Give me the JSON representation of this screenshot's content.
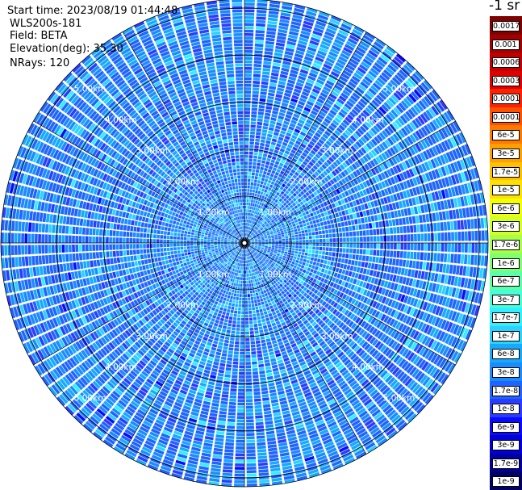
{
  "header": {
    "start_time": "Start time: 2023/08/19 01:44:48",
    "device": "WLS200s-181",
    "field": "Field: BETA",
    "elevation": "Elevation(deg): 35.30",
    "nrays": "NRays: 120"
  },
  "chart_data": {
    "type": "heatmap",
    "projection": "polar-ppi",
    "unit": "-1 sr",
    "ring_labels": [
      "1.00km",
      "2.00km",
      "3.00km",
      "4.00km",
      "5.00km"
    ],
    "max_range_km": 5.2,
    "n_rays": 120,
    "colorbar_ticks": [
      "0.0017",
      "0.001",
      "0.0006",
      "0.0003",
      "0.00017",
      "0.0001",
      "6e-5",
      "3e-5",
      "1.7e-5",
      "1e-5",
      "6e-6",
      "3e-6",
      "1.7e-6",
      "1e-6",
      "6e-7",
      "3e-7",
      "1.7e-7",
      "1e-7",
      "6e-8",
      "3e-8",
      "1.7e-8",
      "1e-8",
      "6e-9",
      "3e-9",
      "1.7e-9",
      "1e-9"
    ],
    "colorbar_colors": [
      "#000066",
      "#0000a0",
      "#0000d8",
      "#0a0aff",
      "#2a3cff",
      "#1e64ff",
      "#1a8cff",
      "#16aaff",
      "#2cd2ff",
      "#30f0ff",
      "#44ffd8",
      "#5cffa8",
      "#80ff70",
      "#a8ff48",
      "#d4ff28",
      "#f4ff00",
      "#ffe000",
      "#ffc000",
      "#ffa000",
      "#ff7800",
      "#ff5000",
      "#ff2000",
      "#e00000",
      "#c00000",
      "#a00000",
      "#800000"
    ],
    "field_colors": [
      "#1e64ff",
      "#1a8cff",
      "#16aaff",
      "#2a3cff",
      "#2cd2ff",
      "#30f0ff",
      "#0a0aff"
    ]
  }
}
